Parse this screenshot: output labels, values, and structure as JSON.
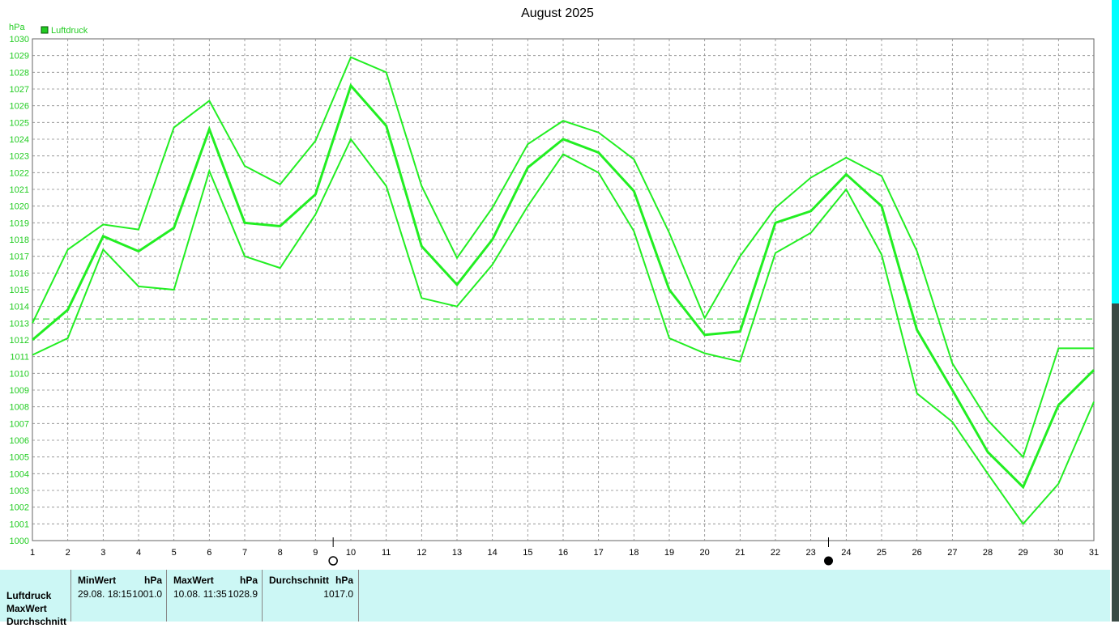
{
  "title": "August 2025",
  "y_unit": "hPa",
  "legend": {
    "label": "Luftdruck",
    "color": "#22cc22"
  },
  "colors": {
    "line": "#22ee22",
    "avg_line": "#22cc22",
    "grid": "#888888",
    "summary_bg": "#ccf7f5"
  },
  "moon_markers": [
    {
      "day": 9.5,
      "icon": "full-moon-icon"
    },
    {
      "day": 23.5,
      "icon": "new-moon-icon"
    }
  ],
  "chart_data": {
    "type": "line",
    "title": "August 2025",
    "ylabel": "hPa",
    "x": [
      1,
      2,
      3,
      4,
      5,
      6,
      7,
      8,
      9,
      10,
      11,
      12,
      13,
      14,
      15,
      16,
      17,
      18,
      19,
      20,
      21,
      22,
      23,
      24,
      25,
      26,
      27,
      28,
      29,
      30,
      31
    ],
    "xlim": [
      1,
      31
    ],
    "ylim": [
      1000,
      1030
    ],
    "yticks": [
      1000,
      1001,
      1002,
      1003,
      1004,
      1005,
      1006,
      1007,
      1008,
      1009,
      1010,
      1011,
      1012,
      1013,
      1014,
      1015,
      1016,
      1017,
      1018,
      1019,
      1020,
      1021,
      1022,
      1023,
      1024,
      1025,
      1026,
      1027,
      1028,
      1029,
      1030
    ],
    "grid": true,
    "legend_position": "top-left",
    "series": [
      {
        "name": "Luftdruck",
        "role": "max",
        "values": [
          1013.0,
          1017.4,
          1018.9,
          1018.6,
          1024.7,
          1026.3,
          1022.4,
          1021.3,
          1023.9,
          1028.9,
          1028.0,
          1021.2,
          1016.9,
          1019.9,
          1023.7,
          1025.1,
          1024.4,
          1022.8,
          1018.4,
          1013.3,
          1017.0,
          1019.9,
          1021.7,
          1022.9,
          1021.8,
          1017.3,
          1010.6,
          1007.2,
          1005.0,
          1011.5,
          1011.5
        ]
      },
      {
        "name": "Luftdruck",
        "role": "mean",
        "values": [
          1012.0,
          1013.8,
          1018.2,
          1017.3,
          1018.7,
          1024.6,
          1019.0,
          1018.8,
          1020.7,
          1027.2,
          1024.8,
          1017.6,
          1015.3,
          1018.0,
          1022.3,
          1024.0,
          1023.2,
          1020.9,
          1015.0,
          1012.3,
          1012.5,
          1019.0,
          1019.7,
          1021.9,
          1020.0,
          1012.6,
          1009.0,
          1005.3,
          1003.2,
          1008.1,
          1010.2
        ]
      },
      {
        "name": "Luftdruck",
        "role": "min",
        "values": [
          1011.1,
          1012.1,
          1017.4,
          1015.2,
          1015.0,
          1022.1,
          1017.0,
          1016.3,
          1019.5,
          1024.0,
          1021.2,
          1014.5,
          1014.0,
          1016.5,
          1020.0,
          1023.1,
          1022.0,
          1018.5,
          1012.1,
          1011.2,
          1010.7,
          1017.2,
          1018.4,
          1021.0,
          1017.1,
          1008.8,
          1007.1,
          1004.0,
          1001.0,
          1003.4,
          1008.3
        ]
      }
    ],
    "reference_line": {
      "value": 1013.25,
      "style": "dashed"
    }
  },
  "summary": {
    "row_labels": [
      "Luftdruck",
      "MaxWert",
      "Durchschnitt"
    ],
    "min": {
      "header": "MinWert",
      "unit": "hPa",
      "datetime": "29.08.  18:15",
      "value": "1001.0"
    },
    "max": {
      "header": "MaxWert",
      "unit": "hPa",
      "datetime": "10.08.  11:35",
      "value": "1028.9"
    },
    "avg": {
      "header": "Durchschnitt",
      "unit": "hPa",
      "value": "1017.0"
    }
  }
}
